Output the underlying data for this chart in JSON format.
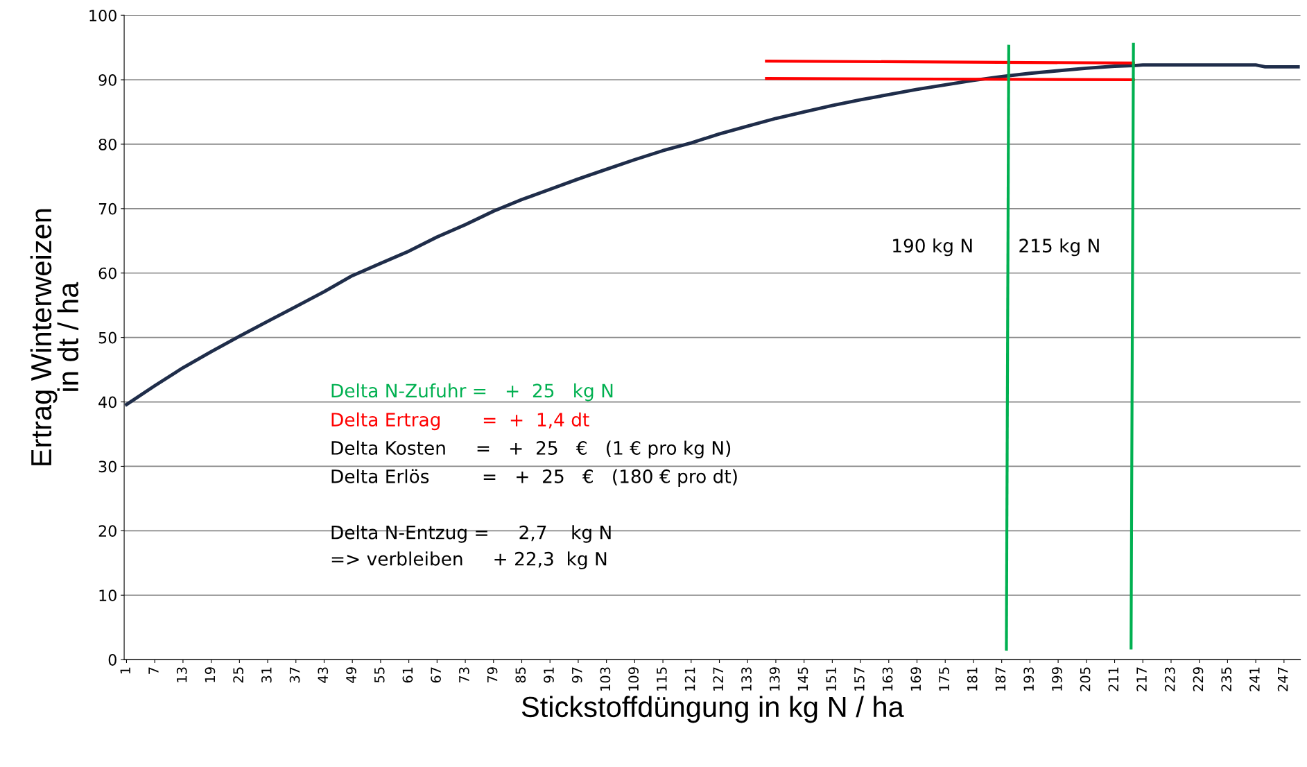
{
  "chart_data": {
    "type": "line",
    "xlabel": "Stickstoffdüngung in kg N / ha",
    "ylabel": "Ertrag Winterweizen\nin dt / ha",
    "xlim": [
      0.5,
      250.5
    ],
    "ylim": [
      0,
      100
    ],
    "xticks": [
      1,
      7,
      13,
      19,
      25,
      31,
      37,
      43,
      49,
      55,
      61,
      67,
      73,
      79,
      85,
      91,
      97,
      103,
      109,
      115,
      121,
      127,
      133,
      139,
      145,
      151,
      157,
      163,
      169,
      175,
      181,
      187,
      193,
      199,
      205,
      211,
      217,
      223,
      229,
      235,
      241,
      247
    ],
    "yticks": [
      0,
      10,
      20,
      30,
      40,
      50,
      60,
      70,
      80,
      90,
      100
    ],
    "grid": "y",
    "legend": false,
    "marker": "none",
    "line_style": "solid",
    "series": [
      {
        "color": "#1f2d4a",
        "x": [
          1,
          7,
          13,
          19,
          25,
          31,
          37,
          43,
          49,
          55,
          61,
          67,
          73,
          79,
          85,
          91,
          97,
          103,
          109,
          115,
          121,
          127,
          133,
          139,
          145,
          151,
          157,
          163,
          169,
          175,
          181,
          187,
          193,
          199,
          205,
          211,
          215,
          217,
          241,
          243,
          250
        ],
        "values": [
          39.6,
          42.5,
          45.3,
          47.8,
          50.2,
          52.5,
          54.8,
          57.1,
          59.6,
          61.5,
          63.4,
          65.6,
          67.5,
          69.6,
          71.4,
          73.0,
          74.6,
          76.1,
          77.6,
          79.0,
          80.2,
          81.6,
          82.8,
          84.0,
          85.0,
          86.0,
          86.9,
          87.7,
          88.5,
          89.2,
          89.9,
          90.5,
          91.0,
          91.4,
          91.8,
          92.1,
          92.2,
          92.3,
          92.3,
          92.0,
          92.0
        ]
      },
      {
        "color": "#ff0000",
        "x": [
          137,
          215
        ],
        "values": [
          92.9,
          92.6
        ]
      },
      {
        "color": "#ff0000",
        "x": [
          137,
          215
        ],
        "values": [
          90.2,
          90.0
        ]
      },
      {
        "color": "#00b050",
        "x": [
          188.5,
          188
        ],
        "values": [
          95.2,
          1.6
        ]
      },
      {
        "color": "#00b050",
        "x": [
          215,
          214.5
        ],
        "values": [
          95.5,
          1.8
        ]
      }
    ],
    "annotations": [
      "190 kg N",
      "215 kg N",
      "Delta N-Zufuhr =   +  25   kg N",
      "Delta Ertrag       =  +  1,4 dt",
      "Delta Kosten     =   +  25   €   (1 € pro kg N)",
      "Delta Erlös         =   +  25   €   (180 € pro dt)",
      "Delta N-Entzug =     2,7    kg N",
      "=> verbleiben     + 22,3  kg N"
    ]
  }
}
